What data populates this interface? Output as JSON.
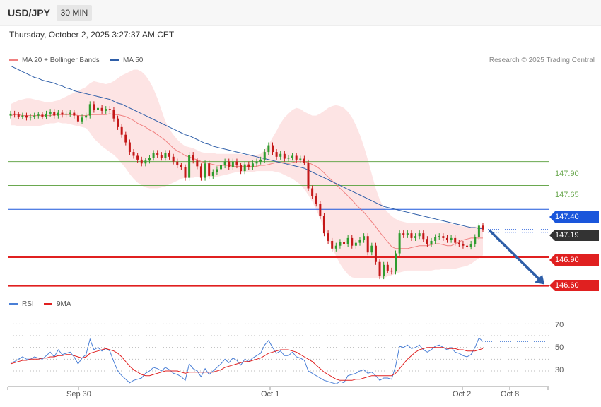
{
  "header": {
    "symbol": "USD/JPY",
    "timeframe": "30 MIN"
  },
  "datetime": "Thursday, October 2, 2025 3:27:37 AM CET",
  "legend": {
    "ma20_label": "MA 20 + Bollinger Bands",
    "ma20_color": "#f08080",
    "ma50_label": "MA 50",
    "ma50_color": "#2e5ea8",
    "rsi_label": "RSI",
    "rsi_color": "#4a7fd6",
    "ma9_label": "9MA",
    "ma9_color": "#e02020"
  },
  "credit": "Research © 2025 Trading Central",
  "levels": {
    "r2": "147.90",
    "r1": "147.65",
    "pivot": "147.40",
    "last": "147.19",
    "s1": "146.90",
    "s2": "146.60"
  },
  "rsi_ticks": [
    "70",
    "50",
    "30"
  ],
  "x_labels": [
    "Sep 30",
    "Oct 1",
    "Oct 2",
    "Oct 8"
  ],
  "chart_data": [
    {
      "type": "candlestick",
      "title": "USD/JPY",
      "timeframe": "30 MIN",
      "ylim": [
        146.56,
        148.85
      ],
      "levels": [
        {
          "value": 147.9,
          "color": "#6aa84f"
        },
        {
          "value": 147.65,
          "color": "#6aa84f"
        },
        {
          "value": 147.4,
          "color": "#1a56db"
        },
        {
          "value": 147.19,
          "color": "#333333"
        },
        {
          "value": 146.9,
          "color": "#e02020"
        },
        {
          "value": 146.6,
          "color": "#e02020"
        }
      ],
      "forecast": {
        "from": 147.19,
        "to": 146.6
      },
      "close": [
        148.4,
        148.39,
        148.37,
        148.38,
        148.36,
        148.37,
        148.38,
        148.39,
        148.37,
        148.4,
        148.42,
        148.38,
        148.41,
        148.39,
        148.4,
        148.41,
        148.38,
        148.32,
        148.36,
        148.38,
        148.5,
        148.44,
        148.46,
        148.43,
        148.45,
        148.44,
        148.35,
        148.26,
        148.18,
        148.1,
        148.0,
        147.96,
        147.92,
        147.88,
        147.91,
        147.94,
        147.99,
        147.97,
        147.94,
        147.99,
        147.95,
        147.9,
        147.86,
        147.84,
        147.73,
        147.97,
        147.91,
        147.85,
        147.73,
        147.88,
        147.75,
        147.79,
        147.82,
        147.86,
        147.9,
        147.84,
        147.9,
        147.86,
        147.8,
        147.87,
        147.84,
        147.88,
        147.9,
        147.92,
        148.0,
        148.07,
        148.0,
        147.95,
        147.98,
        147.93,
        147.94,
        147.96,
        147.92,
        147.93,
        147.89,
        147.62,
        147.54,
        147.46,
        147.33,
        147.15,
        147.07,
        146.99,
        147.02,
        147.06,
        147.04,
        147.1,
        147.02,
        147.05,
        147.08,
        147.12,
        146.95,
        147.02,
        146.85,
        146.7,
        146.82,
        146.76,
        146.75,
        146.94,
        147.15,
        147.13,
        147.15,
        147.1,
        147.12,
        147.15,
        147.09,
        147.04,
        147.07,
        147.11,
        147.12,
        147.1,
        147.08,
        147.1,
        147.05,
        147.04,
        147.02,
        147.01,
        147.04,
        147.11,
        147.23,
        147.19
      ],
      "ma20": [
        148.38,
        148.39,
        148.39,
        148.38,
        148.38,
        148.38,
        148.38,
        148.38,
        148.38,
        148.38,
        148.38,
        148.39,
        148.39,
        148.39,
        148.39,
        148.39,
        148.39,
        148.38,
        148.38,
        148.38,
        148.39,
        148.39,
        148.39,
        148.39,
        148.39,
        148.4,
        148.39,
        148.39,
        148.38,
        148.37,
        148.35,
        148.33,
        148.3,
        148.28,
        148.26,
        148.23,
        148.21,
        148.18,
        148.15,
        148.12,
        148.08,
        148.04,
        148.01,
        147.99,
        147.96,
        147.95,
        147.93,
        147.92,
        147.9,
        147.89,
        147.88,
        147.87,
        147.86,
        147.86,
        147.86,
        147.86,
        147.85,
        147.85,
        147.85,
        147.85,
        147.85,
        147.85,
        147.85,
        147.86,
        147.86,
        147.87,
        147.88,
        147.89,
        147.89,
        147.89,
        147.88,
        147.89,
        147.9,
        147.9,
        147.9,
        147.89,
        147.87,
        147.85,
        147.82,
        147.78,
        147.74,
        147.7,
        147.66,
        147.62,
        147.58,
        147.54,
        147.5,
        147.45,
        147.41,
        147.37,
        147.32,
        147.27,
        147.22,
        147.16,
        147.11,
        147.06,
        147.01,
        146.99,
        146.99,
        146.99,
        146.99,
        147.0,
        147.01,
        147.02,
        147.02,
        147.02,
        147.03,
        147.04,
        147.04,
        147.03,
        147.02,
        147.02,
        147.04,
        147.06,
        147.08,
        147.09,
        147.1,
        147.1,
        147.1,
        147.1
      ],
      "ma50": [
        148.9,
        148.88,
        148.86,
        148.84,
        148.82,
        148.8,
        148.78,
        148.77,
        148.75,
        148.74,
        148.73,
        148.72,
        148.7,
        148.69,
        148.67,
        148.66,
        148.64,
        148.63,
        148.62,
        148.61,
        148.6,
        148.59,
        148.58,
        148.57,
        148.56,
        148.55,
        148.53,
        148.51,
        148.5,
        148.48,
        148.46,
        148.44,
        148.42,
        148.4,
        148.38,
        148.36,
        148.34,
        148.32,
        148.3,
        148.28,
        148.26,
        148.24,
        148.22,
        148.2,
        148.18,
        148.17,
        148.15,
        148.13,
        148.11,
        148.09,
        148.08,
        148.06,
        148.05,
        148.04,
        148.03,
        148.02,
        148.01,
        148.0,
        147.99,
        147.98,
        147.97,
        147.96,
        147.95,
        147.94,
        147.93,
        147.92,
        147.91,
        147.9,
        147.89,
        147.88,
        147.87,
        147.86,
        147.85,
        147.84,
        147.83,
        147.81,
        147.79,
        147.77,
        147.75,
        147.73,
        147.71,
        147.69,
        147.67,
        147.65,
        147.63,
        147.61,
        147.59,
        147.57,
        147.55,
        147.53,
        147.51,
        147.49,
        147.47,
        147.45,
        147.43,
        147.42,
        147.41,
        147.4,
        147.39,
        147.38,
        147.37,
        147.36,
        147.35,
        147.34,
        147.33,
        147.32,
        147.31,
        147.3,
        147.29,
        147.28,
        147.27,
        147.26,
        147.25,
        147.24,
        147.23,
        147.22,
        147.21,
        147.21,
        147.2,
        147.2
      ],
      "bb_upper": [
        148.5,
        148.52,
        148.54,
        148.55,
        148.56,
        148.56,
        148.55,
        148.54,
        148.53,
        148.52,
        148.52,
        148.53,
        148.54,
        148.56,
        148.58,
        148.6,
        148.62,
        148.64,
        148.66,
        148.68,
        148.72,
        148.74,
        148.73,
        148.72,
        148.71,
        148.72,
        148.74,
        148.77,
        148.8,
        148.82,
        148.84,
        148.86,
        148.86,
        148.84,
        148.8,
        148.74,
        148.66,
        148.56,
        148.44,
        148.32,
        148.24,
        148.18,
        148.13,
        148.09,
        148.06,
        148.05,
        148.04,
        148.02,
        148.0,
        147.99,
        147.99,
        147.99,
        147.98,
        147.98,
        147.98,
        147.98,
        147.98,
        147.98,
        147.98,
        147.97,
        147.97,
        147.97,
        147.97,
        147.98,
        148.02,
        148.08,
        148.15,
        148.22,
        148.3,
        148.36,
        148.4,
        148.44,
        148.46,
        148.45,
        148.42,
        148.4,
        148.38,
        148.38,
        148.4,
        148.43,
        148.46,
        148.48,
        148.49,
        148.48,
        148.46,
        148.42,
        148.36,
        148.28,
        148.18,
        148.06,
        147.92,
        147.77,
        147.62,
        147.5,
        147.42,
        147.37,
        147.33,
        147.3,
        147.28,
        147.27,
        147.26,
        147.26,
        147.26,
        147.26,
        147.26,
        147.26,
        147.26,
        147.26,
        147.26,
        147.26,
        147.26,
        147.25,
        147.24,
        147.23,
        147.22,
        147.22,
        147.22,
        147.22,
        147.22,
        147.22
      ],
      "bb_lower": [
        148.28,
        148.28,
        148.27,
        148.27,
        148.27,
        148.27,
        148.27,
        148.27,
        148.28,
        148.29,
        148.3,
        148.3,
        148.31,
        148.3,
        148.3,
        148.29,
        148.28,
        148.27,
        148.26,
        148.25,
        148.2,
        148.14,
        148.1,
        148.06,
        148.03,
        148.0,
        147.97,
        147.93,
        147.88,
        147.83,
        147.77,
        147.72,
        147.68,
        147.65,
        147.63,
        147.62,
        147.62,
        147.62,
        147.63,
        147.64,
        147.66,
        147.68,
        147.7,
        147.72,
        147.73,
        147.73,
        147.73,
        147.74,
        147.74,
        147.74,
        147.74,
        147.74,
        147.74,
        147.75,
        147.76,
        147.77,
        147.78,
        147.79,
        147.79,
        147.79,
        147.79,
        147.79,
        147.8,
        147.8,
        147.8,
        147.8,
        147.8,
        147.79,
        147.78,
        147.76,
        147.74,
        147.72,
        147.69,
        147.66,
        147.61,
        147.55,
        147.48,
        147.4,
        147.3,
        147.2,
        147.1,
        147.0,
        146.91,
        146.83,
        146.77,
        146.72,
        146.69,
        146.68,
        146.68,
        146.68,
        146.68,
        146.68,
        146.68,
        146.68,
        146.68,
        146.7,
        146.71,
        146.73,
        146.74,
        146.75,
        146.76,
        146.76,
        146.76,
        146.76,
        146.76,
        146.76,
        146.76,
        146.77,
        146.77,
        146.78,
        146.78,
        146.78,
        146.78,
        146.79,
        146.8,
        146.81,
        146.83,
        146.86,
        146.89,
        146.92
      ]
    },
    {
      "type": "line",
      "ylim": [
        15,
        78
      ],
      "hlines": [
        70,
        60,
        50,
        40,
        30
      ],
      "series": [
        {
          "name": "RSI",
          "color": "#4a7fd6",
          "values": [
            37,
            38,
            40,
            42,
            40,
            40,
            42,
            41,
            40,
            43,
            46,
            42,
            48,
            44,
            45,
            46,
            42,
            36,
            41,
            44,
            57,
            48,
            50,
            47,
            49,
            47,
            38,
            30,
            26,
            23,
            20,
            22,
            23,
            24,
            28,
            30,
            33,
            32,
            30,
            33,
            31,
            28,
            27,
            25,
            22,
            36,
            32,
            30,
            25,
            32,
            27,
            30,
            33,
            36,
            40,
            37,
            41,
            39,
            35,
            40,
            38,
            41,
            43,
            45,
            52,
            56,
            50,
            45,
            47,
            43,
            43,
            46,
            42,
            41,
            39,
            30,
            28,
            26,
            24,
            22,
            21,
            20,
            19,
            21,
            20,
            26,
            27,
            28,
            30,
            31,
            28,
            29,
            26,
            22,
            24,
            24,
            23,
            34,
            51,
            50,
            52,
            49,
            50,
            52,
            48,
            46,
            48,
            51,
            52,
            50,
            48,
            50,
            46,
            45,
            43,
            42,
            44,
            50,
            58,
            55
          ]
        },
        {
          "name": "9MA",
          "color": "#e02020",
          "values": [
            36,
            37,
            38,
            39,
            39,
            40,
            40,
            40,
            41,
            41,
            42,
            42,
            43,
            43,
            44,
            44,
            43,
            42,
            41,
            42,
            45,
            46,
            47,
            48,
            49,
            48,
            47,
            45,
            42,
            38,
            34,
            31,
            29,
            27,
            26,
            26,
            27,
            28,
            29,
            30,
            30,
            30,
            30,
            29,
            28,
            29,
            29,
            29,
            29,
            29,
            29,
            29,
            30,
            31,
            33,
            34,
            35,
            36,
            37,
            38,
            38,
            39,
            40,
            41,
            43,
            45,
            46,
            47,
            48,
            48,
            48,
            47,
            46,
            44,
            42,
            40,
            38,
            35,
            32,
            29,
            27,
            25,
            23,
            22,
            22,
            22,
            22,
            23,
            23,
            24,
            25,
            26,
            26,
            26,
            26,
            26,
            26,
            28,
            32,
            36,
            40,
            43,
            46,
            48,
            49,
            50,
            50,
            50,
            50,
            50,
            49,
            49,
            49,
            48,
            48,
            47,
            47,
            47,
            48,
            49
          ]
        }
      ]
    }
  ]
}
